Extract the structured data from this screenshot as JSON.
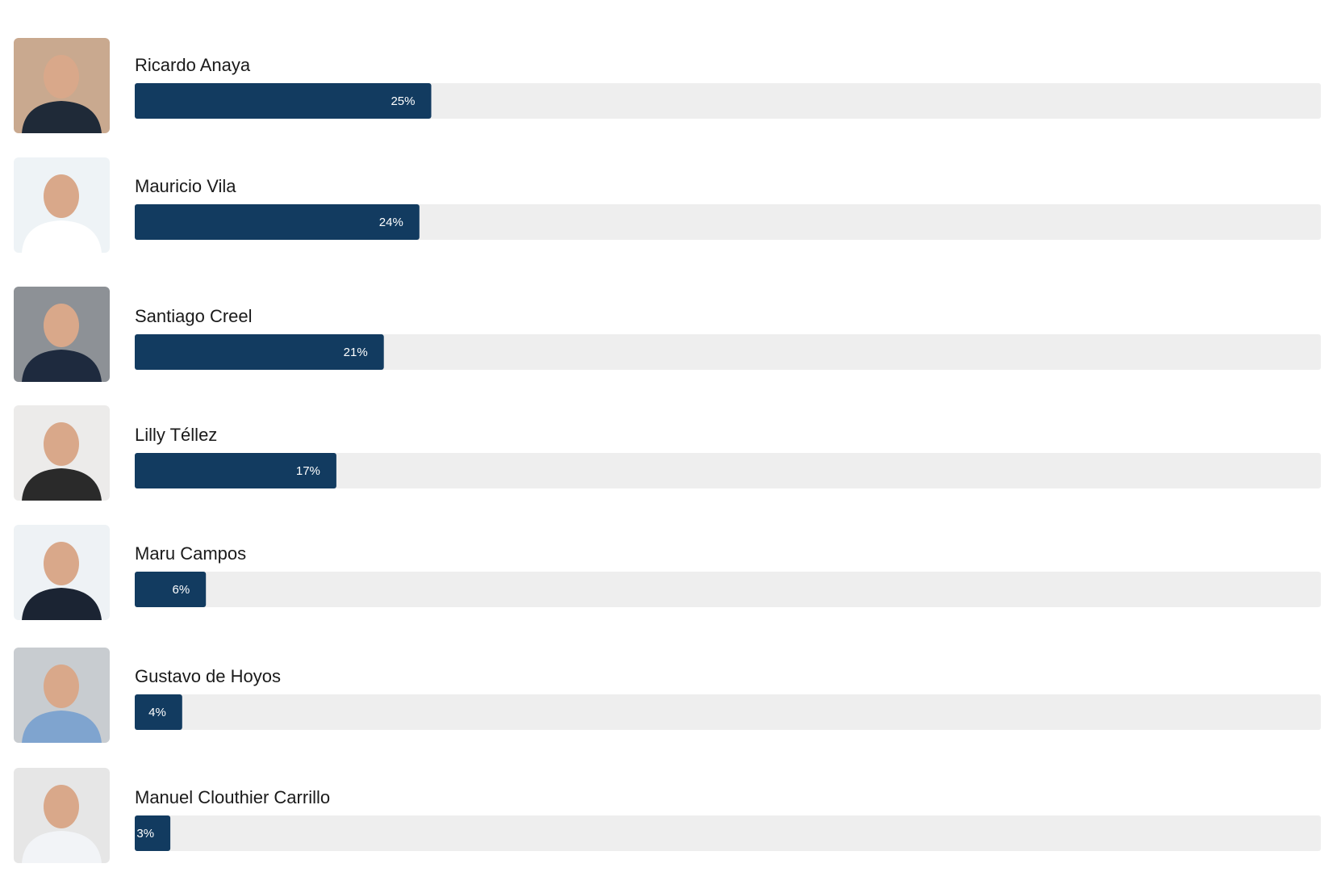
{
  "chart_data": {
    "type": "bar",
    "orientation": "horizontal",
    "categories": [
      "Ricardo Anaya",
      "Mauricio Vila",
      "Santiago Creel",
      "Lilly Téllez",
      "Maru Campos",
      "Gustavo de Hoyos",
      "Manuel Clouthier Carrillo"
    ],
    "values": [
      25,
      24,
      21,
      17,
      6,
      4,
      3
    ],
    "value_labels": [
      "25%",
      "24%",
      "21%",
      "17%",
      "6%",
      "4%",
      "3%"
    ],
    "color": "#123b60",
    "track_color": "#eeeeee",
    "xlim": [
      0,
      100
    ]
  }
}
